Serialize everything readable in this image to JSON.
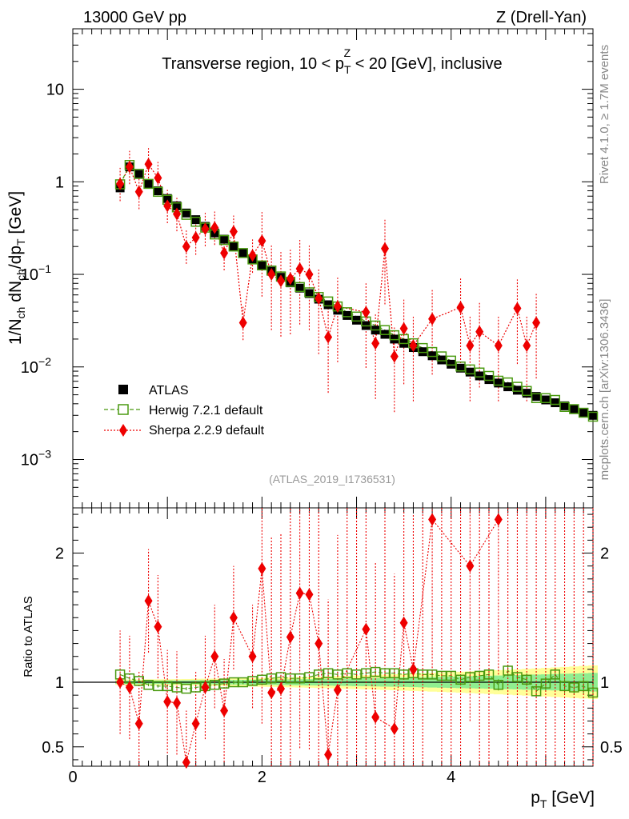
{
  "header": {
    "left": "13000 GeV pp",
    "right": "Z (Drell-Yan)"
  },
  "side": {
    "rivet": "Rivet 4.1.0, ≥ 1.7M events",
    "mcplots": "mcplots.cern.ch [arXiv:1306.3436]"
  },
  "analysis_tag": "(ATLAS_2019_I1736531)",
  "colors": {
    "atlas": "#000000",
    "herwig": "#4a9a10",
    "sherpa": "#ee0000",
    "band_inner": "#90ee90",
    "band_outer": "#ffff99"
  },
  "chart_data": [
    {
      "type": "scatter",
      "title_parts": {
        "before": "Transverse region, 10 < p",
        "sub": "T",
        "sup": "Z",
        "after": " < 20 [GeV], inclusive"
      },
      "ylabel_parts": [
        "1/N",
        "ch",
        " dN",
        "ch",
        "/dp",
        "T",
        " [GeV]"
      ],
      "yscale": "log",
      "ylim": [
        0.0003,
        45
      ],
      "xlim": [
        0,
        5.5
      ],
      "y_major_ticks": [
        {
          "v": 10,
          "label": "10"
        },
        {
          "v": 1,
          "label": "1"
        },
        {
          "v": 0.1,
          "label": "10",
          "exp": "−1"
        },
        {
          "v": 0.01,
          "label": "10",
          "exp": "−2"
        },
        {
          "v": 0.001,
          "label": "10",
          "exp": "−3"
        }
      ],
      "legend": {
        "position": "lower-left",
        "entries": [
          "ATLAS",
          "Herwig 7.2.1 default",
          "Sherpa 2.2.9 default"
        ]
      },
      "x": [
        0.5,
        0.6,
        0.7,
        0.8,
        0.9,
        1.0,
        1.1,
        1.2,
        1.3,
        1.4,
        1.5,
        1.6,
        1.7,
        1.8,
        1.9,
        2.0,
        2.1,
        2.2,
        2.3,
        2.4,
        2.5,
        2.6,
        2.7,
        2.8,
        2.9,
        3.0,
        3.1,
        3.2,
        3.3,
        3.4,
        3.5,
        3.6,
        3.7,
        3.8,
        3.9,
        4.0,
        4.1,
        4.2,
        4.3,
        4.4,
        4.5,
        4.6,
        4.7,
        4.8,
        4.9,
        5.0,
        5.1,
        5.2,
        5.3,
        5.4,
        5.5
      ],
      "series": [
        {
          "name": "ATLAS",
          "values": [
            0.86,
            1.45,
            1.2,
            0.95,
            0.8,
            0.66,
            0.55,
            0.46,
            0.39,
            0.33,
            0.28,
            0.24,
            0.2,
            0.17,
            0.145,
            0.125,
            0.108,
            0.093,
            0.081,
            0.071,
            0.062,
            0.054,
            0.047,
            0.041,
            0.036,
            0.032,
            0.028,
            0.025,
            0.0225,
            0.02,
            0.018,
            0.0162,
            0.0146,
            0.0132,
            0.0119,
            0.0107,
            0.0097,
            0.0088,
            0.008,
            0.0073,
            0.0067,
            0.0061,
            0.0056,
            0.0052,
            0.0048,
            0.0044,
            0.0041,
            0.0038,
            0.0035,
            0.0032,
            0.003
          ]
        },
        {
          "name": "Herwig 7.2.1 default",
          "values": [
            0.94,
            1.52,
            1.22,
            0.95,
            0.78,
            0.64,
            0.53,
            0.44,
            0.37,
            0.32,
            0.27,
            0.235,
            0.2,
            0.17,
            0.145,
            0.125,
            0.11,
            0.095,
            0.083,
            0.073,
            0.064,
            0.057,
            0.051,
            0.045,
            0.039,
            0.035,
            0.031,
            0.028,
            0.025,
            0.022,
            0.02,
            0.018,
            0.016,
            0.0145,
            0.013,
            0.0117,
            0.0101,
            0.0094,
            0.0087,
            0.008,
            0.0071,
            0.0068,
            0.0061,
            0.0055,
            0.0046,
            0.0046,
            0.0044,
            0.0037,
            0.0035,
            0.0032,
            0.0029
          ]
        },
        {
          "name": "Sherpa 2.2.9 default",
          "values": [
            0.95,
            1.45,
            0.78,
            1.55,
            1.1,
            0.55,
            0.45,
            0.2,
            0.25,
            0.31,
            0.32,
            0.17,
            0.29,
            0.03,
            0.16,
            0.23,
            0.1,
            0.085,
            0.09,
            0.115,
            0.1,
            0.055,
            0.021,
            0.045,
            null,
            null,
            0.039,
            0.018,
            0.19,
            0.013,
            0.026,
            0.017,
            null,
            0.033,
            null,
            null,
            0.044,
            0.017,
            0.024,
            null,
            0.017,
            null,
            0.043,
            0.017,
            0.03,
            null,
            null,
            null,
            null,
            null,
            null
          ]
        }
      ]
    },
    {
      "type": "scatter",
      "ylabel": "Ratio to ATLAS",
      "xlabel_parts": [
        "p",
        "T",
        " [GeV]"
      ],
      "ylim": [
        0.35,
        2.35
      ],
      "xlim": [
        0,
        5.5
      ],
      "y_tick_labels": [
        {
          "v": 2,
          "label": "2"
        },
        {
          "v": 1,
          "label": "1"
        },
        {
          "v": 0.5,
          "label": "0.5"
        }
      ],
      "x_tick_labels": [
        {
          "v": 0,
          "label": "0"
        },
        {
          "v": 2,
          "label": "2"
        },
        {
          "v": 4,
          "label": "4"
        }
      ],
      "series": [
        {
          "name": "Herwig 7.2.1 default",
          "values": [
            1.06,
            1.03,
            1.01,
            0.98,
            0.97,
            0.97,
            0.96,
            0.95,
            0.96,
            0.97,
            0.98,
            0.99,
            1.0,
            1.0,
            1.01,
            1.02,
            1.03,
            1.04,
            1.03,
            1.03,
            1.04,
            1.06,
            1.07,
            1.06,
            1.07,
            1.06,
            1.07,
            1.08,
            1.07,
            1.07,
            1.06,
            1.07,
            1.06,
            1.06,
            1.05,
            1.05,
            1.02,
            1.04,
            1.05,
            1.06,
            0.98,
            1.09,
            1.04,
            1.02,
            0.93,
            0.99,
            1.06,
            0.97,
            0.96,
            0.97,
            0.92
          ]
        },
        {
          "name": "Sherpa 2.2.9 default",
          "values": [
            1.0,
            0.96,
            0.68,
            1.63,
            1.43,
            0.85,
            0.84,
            0.38,
            0.68,
            0.96,
            1.2,
            0.78,
            1.5,
            null,
            1.2,
            1.88,
            0.92,
            0.95,
            1.35,
            1.69,
            1.68,
            1.3,
            0.44,
            0.94,
            null,
            null,
            1.41,
            0.73,
            null,
            0.64,
            1.46,
            1.1,
            null,
            2.26,
            null,
            null,
            null,
            1.9,
            null,
            null,
            2.26,
            null,
            null,
            null,
            null,
            null,
            null,
            null,
            null,
            null,
            null
          ]
        }
      ]
    }
  ]
}
